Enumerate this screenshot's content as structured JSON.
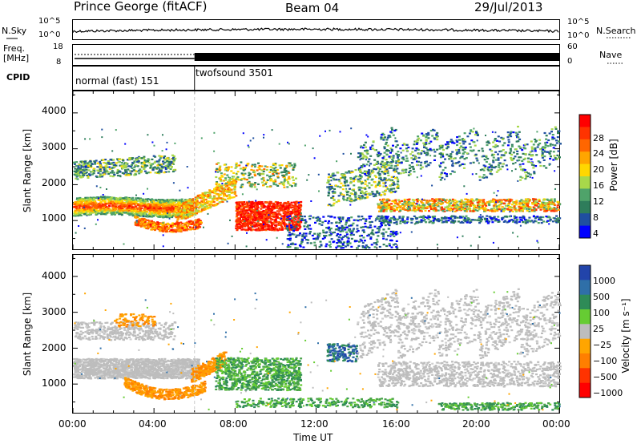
{
  "header": {
    "station": "Prince George (fitACF)",
    "beam": "Beam 04",
    "date": "29/Jul/2013"
  },
  "strips": {
    "nsky_label": "N.Sky",
    "nsky_tick_top": "10^5",
    "nsky_tick_bottom": "10^0",
    "nsearch_label": "N.Search",
    "nsearch_tick_top": "10^5",
    "nsearch_tick_bottom": "10^0",
    "freq_label_1": "Freq.",
    "freq_label_2": "[MHz]",
    "freq_tick_top": "18",
    "freq_tick_bottom": "8",
    "nave_label": "Nave",
    "nave_tick_top": "60",
    "nave_tick_bottom": "0",
    "cpid_label": "CPID",
    "cpid_mode_1": "normal (fast) 151",
    "cpid_mode_2": "twofsound 3501"
  },
  "chart_data": [
    {
      "type": "heatmap",
      "name": "power",
      "ylabel": "Slant Range [km]",
      "yticks": [
        "1000",
        "2000",
        "3000",
        "4000"
      ],
      "ylim": [
        200,
        4600
      ],
      "xlim_hours": [
        0,
        24
      ],
      "colorbar_label": "Power [dB]",
      "colorbar_ticks": [
        "28",
        "24",
        "20",
        "16",
        "12",
        "8",
        "4"
      ],
      "colorbar_colors": [
        "#ff0000",
        "#ff3300",
        "#ff6600",
        "#ffa500",
        "#ffd700",
        "#a8d84a",
        "#4fa36a",
        "#2e7d5b",
        "#1f4fa0",
        "#0000ff"
      ]
    },
    {
      "type": "heatmap",
      "name": "velocity",
      "ylabel": "Slant Range [km]",
      "yticks": [
        "1000",
        "2000",
        "3000",
        "4000"
      ],
      "ylim": [
        200,
        4600
      ],
      "xlim_hours": [
        0,
        24
      ],
      "colorbar_label": "Velocity [m s⁻¹]",
      "colorbar_ticks": [
        "1000",
        "500",
        "100",
        "25",
        "−25",
        "−100",
        "−500",
        "−1000"
      ],
      "colorbar_colors": [
        "#2244aa",
        "#2f6fa8",
        "#2e8b57",
        "#66cc33",
        "#bdbdbd",
        "#ffa500",
        "#ff7f00",
        "#ff3300",
        "#ff0000"
      ]
    }
  ],
  "xaxis": {
    "label": "Time UT",
    "ticks": [
      "00:00",
      "04:00",
      "08:00",
      "12:00",
      "16:00",
      "20:00",
      "00:00"
    ]
  }
}
